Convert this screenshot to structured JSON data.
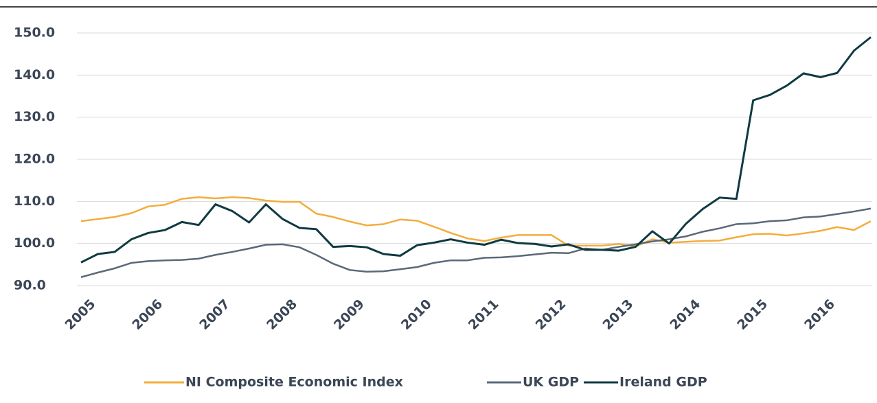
{
  "chart_data": {
    "type": "line",
    "categories": [
      "2005",
      null,
      null,
      null,
      "2006",
      null,
      null,
      null,
      "2007",
      null,
      null,
      null,
      "2008",
      null,
      null,
      null,
      "2009",
      null,
      null,
      null,
      "2010",
      null,
      null,
      null,
      "2011",
      null,
      null,
      null,
      "2012",
      null,
      null,
      null,
      "2013",
      null,
      null,
      null,
      "2014",
      null,
      null,
      null,
      "2015",
      null,
      null,
      null,
      "2016",
      null,
      null,
      null
    ],
    "series": [
      {
        "name": "NI Composite Economic Index",
        "color": "#f3ad3c",
        "values": [
          105.3,
          105.8,
          106.3,
          107.2,
          108.8,
          109.2,
          110.6,
          111.0,
          110.7,
          111.0,
          110.8,
          110.2,
          109.9,
          109.9,
          107.1,
          106.3,
          105.2,
          104.3,
          104.6,
          105.7,
          105.4,
          104.0,
          102.5,
          101.2,
          100.6,
          101.4,
          102.0,
          102.0,
          102.0,
          99.5,
          99.5,
          99.5,
          99.9,
          99.3,
          101.0,
          100.2,
          100.4,
          100.6,
          100.7,
          101.5,
          102.2,
          102.3,
          101.9,
          102.4,
          103.0,
          103.9,
          103.2,
          105.3
        ]
      },
      {
        "name": "UK GDP",
        "color": "#5b6878",
        "values": [
          92.0,
          93.1,
          94.1,
          95.4,
          95.8,
          96.0,
          96.1,
          96.4,
          97.3,
          98.0,
          98.8,
          99.7,
          99.8,
          99.1,
          97.3,
          95.2,
          93.7,
          93.3,
          93.4,
          93.9,
          94.4,
          95.4,
          96.0,
          96.0,
          96.6,
          96.7,
          97.0,
          97.4,
          97.8,
          97.7,
          98.8,
          98.5,
          99.2,
          99.8,
          100.5,
          101.0,
          101.7,
          102.8,
          103.6,
          104.6,
          104.8,
          105.3,
          105.5,
          106.2,
          106.4,
          107.0,
          107.6,
          108.3
        ]
      },
      {
        "name": "Ireland GDP",
        "color": "#0f3a42",
        "values": [
          95.5,
          97.5,
          98.0,
          101.0,
          102.5,
          103.2,
          105.1,
          104.4,
          109.3,
          107.7,
          105.0,
          109.3,
          105.8,
          103.7,
          103.4,
          99.2,
          99.4,
          99.1,
          97.5,
          97.1,
          99.6,
          100.2,
          101.0,
          100.2,
          99.7,
          100.9,
          100.1,
          99.9,
          99.3,
          99.8,
          98.5,
          98.5,
          98.3,
          99.2,
          102.9,
          100.0,
          104.7,
          108.2,
          110.9,
          110.6,
          134.0,
          135.3,
          137.5,
          140.4,
          139.5,
          140.5,
          145.8,
          149.0
        ]
      }
    ],
    "ylim": [
      90,
      150
    ],
    "yticks": [
      {
        "value": 90,
        "label": "90.0"
      },
      {
        "value": 100,
        "label": "100.0"
      },
      {
        "value": 110,
        "label": "110.0"
      },
      {
        "value": 120,
        "label": "120.0"
      },
      {
        "value": 130,
        "label": "130.0"
      },
      {
        "value": 140,
        "label": "140.0"
      },
      {
        "value": 150,
        "label": "150.0"
      }
    ],
    "grid": true
  }
}
